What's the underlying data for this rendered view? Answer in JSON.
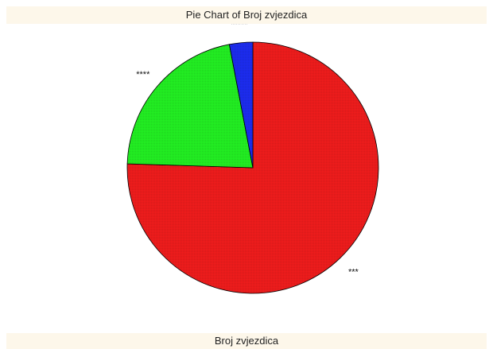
{
  "header": {
    "title": "Pie Chart of Broj zvjezdica"
  },
  "footer": {
    "legend_title": "Broj zvjezdica"
  },
  "chart_data": {
    "type": "pie",
    "title": "Pie Chart of Broj zvjezdica",
    "legend_title": "Broj zvjezdica",
    "start_angle_deg": 0,
    "direction": "clockwise",
    "slices": [
      {
        "label": "***",
        "value": 75.5,
        "color": "#ee1c1c"
      },
      {
        "label": "****",
        "value": 21.5,
        "color": "#22ee22"
      },
      {
        "label": "*****",
        "value": 3.0,
        "color": "#1c2cee"
      }
    ]
  }
}
